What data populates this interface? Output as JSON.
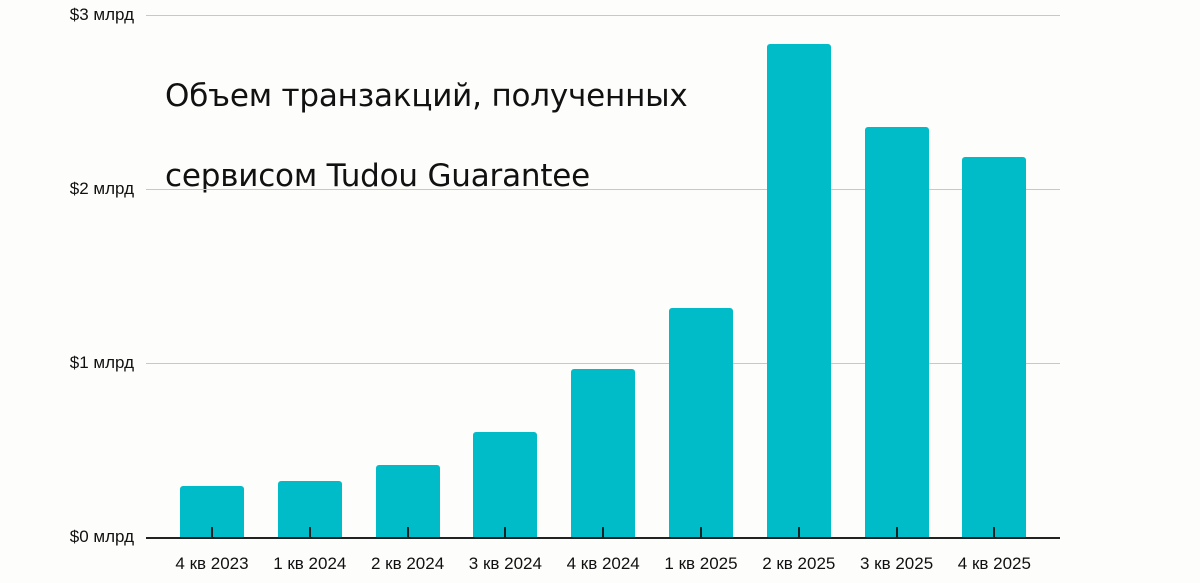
{
  "chart_data": {
    "type": "bar",
    "title": "Объем транзакций, полученных сервисом Tudou Guarantee",
    "title_lines": [
      "Объем транзакций, полученных",
      "сервисом Tudou Guarantee"
    ],
    "xlabel": "",
    "ylabel": "",
    "categories": [
      "4 кв 2023",
      "1 кв 2024",
      "2 кв 2024",
      "3 кв 2024",
      "4 кв 2024",
      "1 кв 2025",
      "2 кв 2025",
      "3 кв 2025",
      "4 кв 2025"
    ],
    "values": [
      0.3,
      0.33,
      0.42,
      0.61,
      0.97,
      1.32,
      2.84,
      2.36,
      2.19
    ],
    "unit": "$ млрд",
    "ylim": [
      0,
      3
    ],
    "yticks": [
      0,
      1,
      2,
      3
    ],
    "ytick_labels": [
      "$0 млрд",
      "$1 млрд",
      "$2 млрд",
      "$3 млрд"
    ],
    "grid": true,
    "legend": null,
    "bar_color": "#00bcc8"
  }
}
